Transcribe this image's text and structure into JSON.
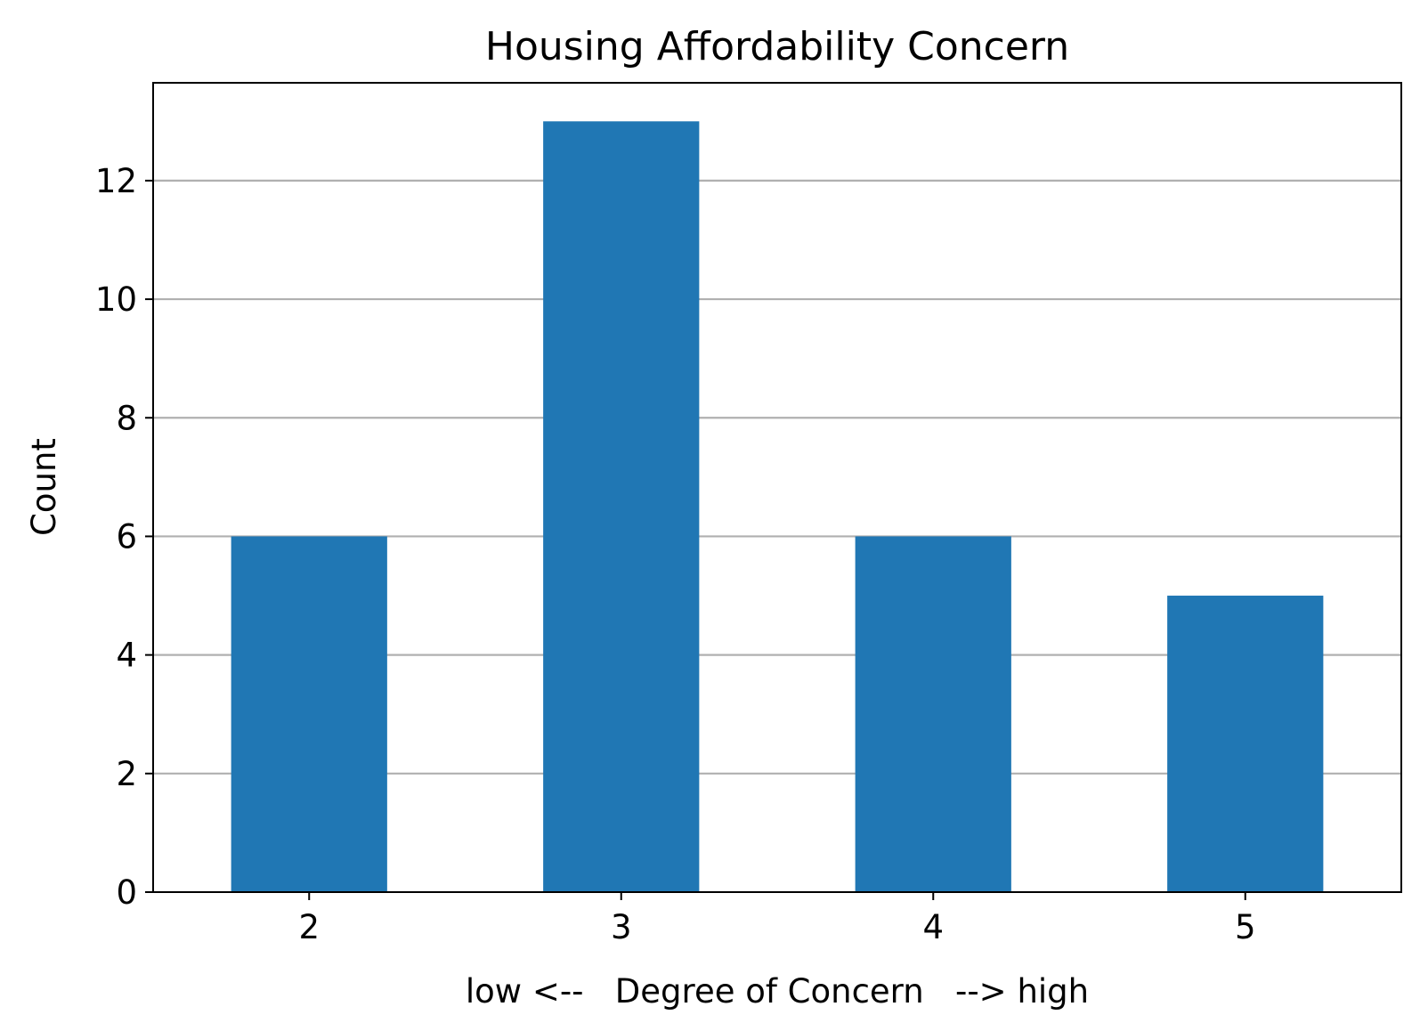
{
  "chart_data": {
    "type": "bar",
    "title": "Housing Affordability Concern",
    "xlabel": "low <--   Degree of Concern   --> high",
    "ylabel": "Count",
    "categories": [
      "2",
      "3",
      "4",
      "5"
    ],
    "values": [
      6,
      13,
      6,
      5
    ],
    "ylim": [
      0,
      13.65
    ],
    "yticks": [
      0,
      2,
      4,
      6,
      8,
      10,
      12
    ],
    "ytick_labels": [
      "0",
      "2",
      "4",
      "6",
      "8",
      "10",
      "12"
    ],
    "grid": "horizontal",
    "legend": "none",
    "colors": {
      "bar": "#2077b4",
      "grid": "#b0b0b0",
      "axis": "#000000"
    }
  }
}
